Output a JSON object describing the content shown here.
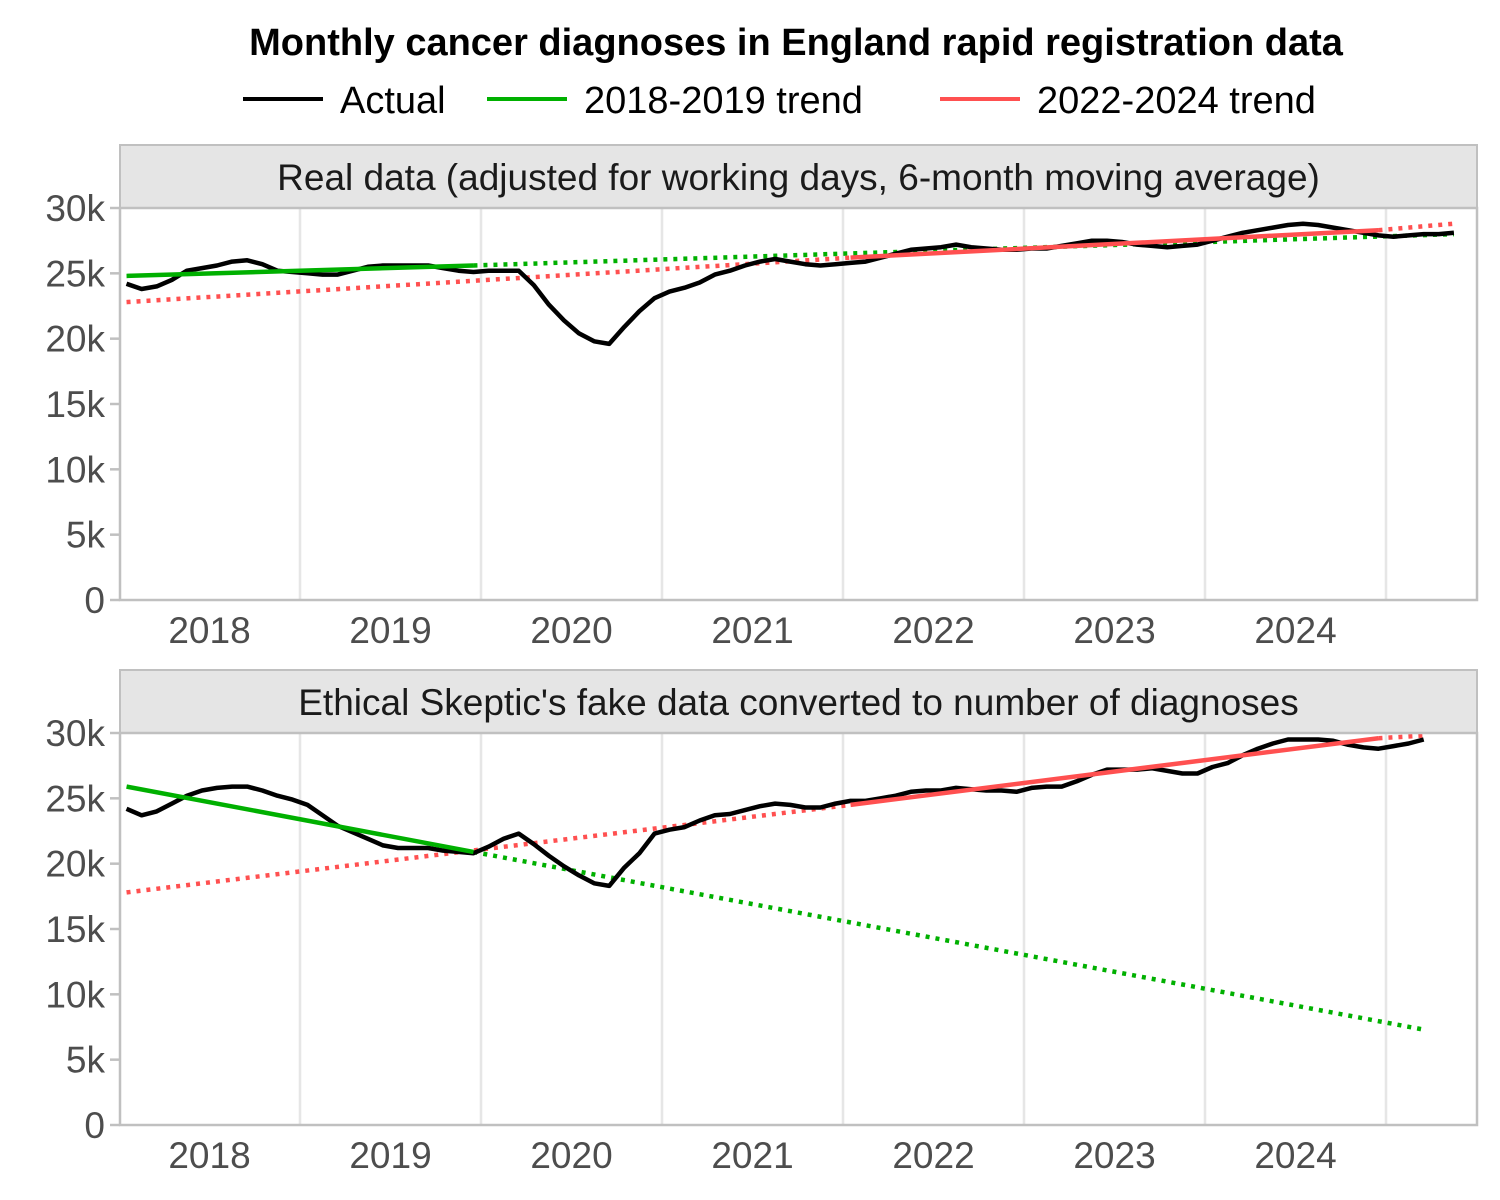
{
  "chart_data": {
    "type": "line",
    "title": "Monthly cancer diagnoses in England rapid registration data",
    "legend": {
      "placement": "top",
      "entries": [
        {
          "label": "Actual",
          "color": "#000000"
        },
        {
          "label": "2018-2019 trend",
          "color": "#00b000"
        },
        {
          "label": "2022-2024 trend",
          "color": "#ff5050"
        }
      ]
    },
    "xlabel": "",
    "ylabel": "",
    "x_ticks": [
      "2018",
      "2019",
      "2020",
      "2021",
      "2022",
      "2023",
      "2024"
    ],
    "y_ticks": [
      "0",
      "5k",
      "10k",
      "15k",
      "20k",
      "25k",
      "30k"
    ],
    "ylim": [
      0,
      30000
    ],
    "xlim": [
      "2018-01",
      "2025-06"
    ],
    "grid": "vertical year boundaries",
    "panels": [
      {
        "strip_label": "Real data (adjusted for working days, 6-month moving average)",
        "series": [
          {
            "name": "Actual",
            "x_start": "2018-01",
            "frequency": "monthly",
            "values": [
              24200,
              23800,
              24000,
              24500,
              25200,
              25400,
              25600,
              25900,
              26000,
              25700,
              25200,
              25100,
              25000,
              24900,
              24900,
              25200,
              25500,
              25600,
              25600,
              25600,
              25600,
              25400,
              25200,
              25100,
              25200,
              25200,
              25200,
              24100,
              22600,
              21400,
              20400,
              19800,
              19600,
              20900,
              22100,
              23100,
              23600,
              23900,
              24300,
              24900,
              25200,
              25600,
              25900,
              26100,
              25900,
              25700,
              25600,
              25700,
              25800,
              25900,
              26200,
              26500,
              26800,
              26900,
              27000,
              27200,
              27000,
              26900,
              26800,
              26800,
              26900,
              26900,
              27100,
              27300,
              27500,
              27500,
              27400,
              27200,
              27100,
              27000,
              27100,
              27200,
              27500,
              27800,
              28100,
              28300,
              28500,
              28700,
              28800,
              28700,
              28500,
              28300,
              28100,
              27900,
              27800,
              27900,
              28000,
              28000,
              28100
            ]
          },
          {
            "name": "2018-2019 trend",
            "fit_range": [
              "2018-01",
              "2019-12"
            ],
            "fit_start_value": 24800,
            "fit_end_value": 25600,
            "extrapolated_end": "2025-05",
            "extrapolated_end_value": 28000
          },
          {
            "name": "2022-2024 trend",
            "fit_range": [
              "2022-01",
              "2024-12"
            ],
            "fit_start_value": 26200,
            "fit_end_value": 28300,
            "extrapolated_start": "2018-01",
            "extrapolated_start_value": 22800,
            "extrapolated_end": "2025-05",
            "extrapolated_end_value": 28800
          }
        ]
      },
      {
        "strip_label": "Ethical Skeptic's fake data converted to number of diagnoses",
        "series": [
          {
            "name": "Actual",
            "x_start": "2018-01",
            "frequency": "monthly",
            "values": [
              24200,
              23700,
              24000,
              24600,
              25200,
              25600,
              25800,
              25900,
              25900,
              25600,
              25200,
              24900,
              24500,
              23700,
              22900,
              22400,
              21900,
              21400,
              21200,
              21200,
              21200,
              21000,
              20900,
              20800,
              21300,
              21900,
              22300,
              21500,
              20600,
              19800,
              19100,
              18500,
              18300,
              19700,
              20800,
              22300,
              22600,
              22800,
              23300,
              23700,
              23800,
              24100,
              24400,
              24600,
              24500,
              24300,
              24300,
              24600,
              24800,
              24800,
              25000,
              25200,
              25500,
              25600,
              25600,
              25800,
              25700,
              25600,
              25600,
              25500,
              25800,
              25900,
              25900,
              26300,
              26800,
              27200,
              27200,
              27200,
              27300,
              27100,
              26900,
              26900,
              27400,
              27700,
              28300,
              28800,
              29200,
              29500,
              29500,
              29500,
              29400,
              29100,
              28900,
              28800,
              29000,
              29200,
              29500
            ]
          },
          {
            "name": "2018-2019 trend",
            "fit_range": [
              "2018-01",
              "2019-12"
            ],
            "fit_start_value": 25900,
            "fit_end_value": 20900,
            "extrapolated_end": "2025-03",
            "extrapolated_end_value": 7300
          },
          {
            "name": "2022-2024 trend",
            "fit_range": [
              "2022-01",
              "2024-12"
            ],
            "fit_start_value": 24500,
            "fit_end_value": 29600,
            "extrapolated_start": "2018-01",
            "extrapolated_start_value": 17800,
            "extrapolated_end": "2025-03",
            "extrapolated_end_value": 29800
          }
        ]
      }
    ]
  }
}
